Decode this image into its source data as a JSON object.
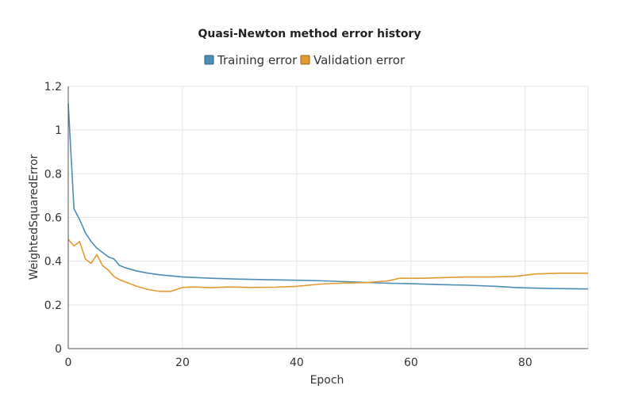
{
  "chart_data": {
    "type": "line",
    "title": "Quasi-Newton method error history",
    "xlabel": "Epoch",
    "ylabel": "WeightedSquaredError",
    "xlim": [
      0,
      91
    ],
    "ylim": [
      0,
      1.2
    ],
    "x_ticks": [
      0,
      20,
      40,
      60,
      80
    ],
    "x_tick_labels": [
      "0",
      "20",
      "40",
      "60",
      "80"
    ],
    "y_ticks": [
      0,
      0.2,
      0.4,
      0.6,
      0.8,
      1,
      1.2
    ],
    "y_tick_labels": [
      "0",
      "0.2",
      "0.4",
      "0.6",
      "0.8",
      "1",
      "1.2"
    ],
    "grid": true,
    "legend_position": "top-center",
    "series": [
      {
        "name": "Training error",
        "color": "#4a8db5",
        "x": [
          0,
          1,
          2,
          3,
          4,
          5,
          6,
          7,
          8,
          9,
          10,
          12,
          14,
          16,
          18,
          20,
          25,
          30,
          35,
          40,
          45,
          50,
          55,
          60,
          65,
          70,
          75,
          78,
          80,
          85,
          91
        ],
        "y": [
          1.12,
          0.64,
          0.59,
          0.53,
          0.49,
          0.46,
          0.44,
          0.42,
          0.41,
          0.38,
          0.37,
          0.355,
          0.345,
          0.338,
          0.333,
          0.328,
          0.322,
          0.318,
          0.315,
          0.313,
          0.31,
          0.305,
          0.3,
          0.297,
          0.293,
          0.29,
          0.285,
          0.28,
          0.278,
          0.275,
          0.273
        ]
      },
      {
        "name": "Validation error",
        "color": "#e39a2f",
        "x": [
          0,
          1,
          2,
          3,
          4,
          5,
          6,
          7,
          8,
          9,
          10,
          12,
          14,
          16,
          18,
          20,
          22,
          25,
          28,
          32,
          36,
          40,
          44,
          48,
          52,
          56,
          58,
          62,
          66,
          70,
          74,
          78,
          82,
          86,
          91
        ],
        "y": [
          0.5,
          0.47,
          0.49,
          0.41,
          0.39,
          0.43,
          0.38,
          0.36,
          0.33,
          0.315,
          0.305,
          0.285,
          0.27,
          0.262,
          0.262,
          0.28,
          0.282,
          0.279,
          0.282,
          0.28,
          0.281,
          0.285,
          0.295,
          0.3,
          0.302,
          0.31,
          0.322,
          0.322,
          0.325,
          0.328,
          0.328,
          0.33,
          0.342,
          0.345,
          0.345
        ]
      }
    ]
  }
}
